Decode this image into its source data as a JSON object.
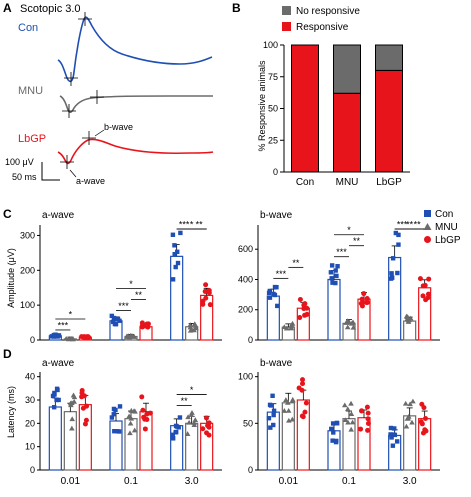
{
  "colors": {
    "con": "#1f4fb4",
    "mnu": "#6b6b6b",
    "lbgp": "#e8141c",
    "nonresp": "#6b6b6b",
    "resp": "#e8141c",
    "axis": "#000000"
  },
  "panel_labels": {
    "a": "A",
    "b": "B",
    "c": "C",
    "d": "D"
  },
  "panel_a": {
    "title": "Scotopic 3.0",
    "traces": [
      "Con",
      "MNU",
      "LbGP"
    ],
    "bwave_label": "b-wave",
    "awave_label": "a-wave",
    "scale_y": "100 μV",
    "scale_x": "50 ms"
  },
  "chart_data": [
    {
      "type": "bar",
      "panel": "B",
      "stacked": true,
      "categories": [
        "Con",
        "MNU",
        "LbGP"
      ],
      "series": [
        {
          "name": "Responsive",
          "values": [
            100,
            62,
            80
          ]
        },
        {
          "name": "No responsive",
          "values": [
            0,
            38,
            20
          ]
        }
      ],
      "ylabel": "% Responsive animals",
      "yticks": [
        0,
        25,
        50,
        75,
        100
      ],
      "ylim": [
        0,
        100
      ],
      "legend": "top"
    },
    {
      "type": "bar",
      "panel": "C",
      "title": "a-wave",
      "categories": [
        "0.01",
        "0.1",
        "3.0"
      ],
      "series": [
        {
          "name": "Con",
          "values": [
            12,
            55,
            240
          ]
        },
        {
          "name": "MNU",
          "values": [
            3,
            10,
            38
          ]
        },
        {
          "name": "LbGP",
          "values": [
            8,
            38,
            128
          ]
        }
      ],
      "ylabel": "Amplitude (μV)",
      "yticks": [
        0,
        100,
        200,
        300
      ],
      "ylim": [
        0,
        330
      ],
      "significance": [
        {
          "group": "0.01",
          "pair": "Con-MNU",
          "label": "***"
        },
        {
          "group": "0.01",
          "pair": "Con-LbGP",
          "label": "*"
        },
        {
          "group": "0.1",
          "pair": "Con-MNU",
          "label": "***"
        },
        {
          "group": "0.1",
          "pair": "MNU-LbGP",
          "label": "**"
        },
        {
          "group": "0.1",
          "pair": "Con-LbGP",
          "label": "*"
        },
        {
          "group": "3.0",
          "pair": "Con-MNU",
          "label": "***"
        },
        {
          "group": "3.0",
          "pair": "MNU-LbGP",
          "label": "**"
        },
        {
          "group": "3.0",
          "pair": "Con-LbGP",
          "label": "*"
        }
      ]
    },
    {
      "type": "bar",
      "panel": "C",
      "title": "b-wave",
      "categories": [
        "0.01",
        "0.1",
        "3.0"
      ],
      "series": [
        {
          "name": "Con",
          "values": [
            290,
            400,
            545
          ]
        },
        {
          "name": "MNU",
          "values": [
            85,
            110,
            125
          ]
        },
        {
          "name": "LbGP",
          "values": [
            210,
            270,
            345
          ]
        }
      ],
      "yticks": [
        0,
        200,
        400,
        600
      ],
      "ylim": [
        0,
        760
      ],
      "legend_entries": [
        "Con",
        "MNU",
        "LbGP"
      ],
      "legend": "top-right",
      "significance": [
        {
          "group": "0.01",
          "pair": "Con-MNU",
          "label": "***"
        },
        {
          "group": "0.01",
          "pair": "MNU-LbGP",
          "label": "**"
        },
        {
          "group": "0.1",
          "pair": "Con-MNU",
          "label": "***"
        },
        {
          "group": "0.1",
          "pair": "MNU-LbGP",
          "label": "**"
        },
        {
          "group": "0.1",
          "pair": "Con-LbGP",
          "label": "*"
        },
        {
          "group": "3.0",
          "pair": "Con-MNU",
          "label": "***"
        },
        {
          "group": "3.0",
          "pair": "MNU-LbGP",
          "label": "**"
        },
        {
          "group": "3.0",
          "pair": "Con-LbGP",
          "label": "**"
        }
      ]
    },
    {
      "type": "bar",
      "panel": "D",
      "title": "a-wave",
      "categories": [
        "0.01",
        "0.1",
        "3.0"
      ],
      "series": [
        {
          "name": "Con",
          "values": [
            27,
            21,
            19
          ]
        },
        {
          "name": "MNU",
          "values": [
            25,
            22,
            20
          ]
        },
        {
          "name": "LbGP",
          "values": [
            28,
            25,
            20
          ]
        }
      ],
      "ylabel": "Latency (ms)",
      "yticks": [
        0,
        10,
        20,
        30,
        40
      ],
      "ylim": [
        0,
        42
      ],
      "significance": [
        {
          "group": "3.0",
          "pair": "Con-MNU",
          "label": "**"
        },
        {
          "group": "3.0",
          "pair": "Con-LbGP",
          "label": "*"
        }
      ]
    },
    {
      "type": "bar",
      "panel": "D",
      "title": "b-wave",
      "categories": [
        "0.01",
        "0.1",
        "3.0"
      ],
      "series": [
        {
          "name": "Con",
          "values": [
            62,
            42,
            37
          ]
        },
        {
          "name": "MNU",
          "values": [
            72,
            55,
            58
          ]
        },
        {
          "name": "LbGP",
          "values": [
            75,
            56,
            55
          ]
        }
      ],
      "yticks": [
        0,
        50,
        100
      ],
      "ylim": [
        0,
        105
      ],
      "significance": []
    }
  ]
}
